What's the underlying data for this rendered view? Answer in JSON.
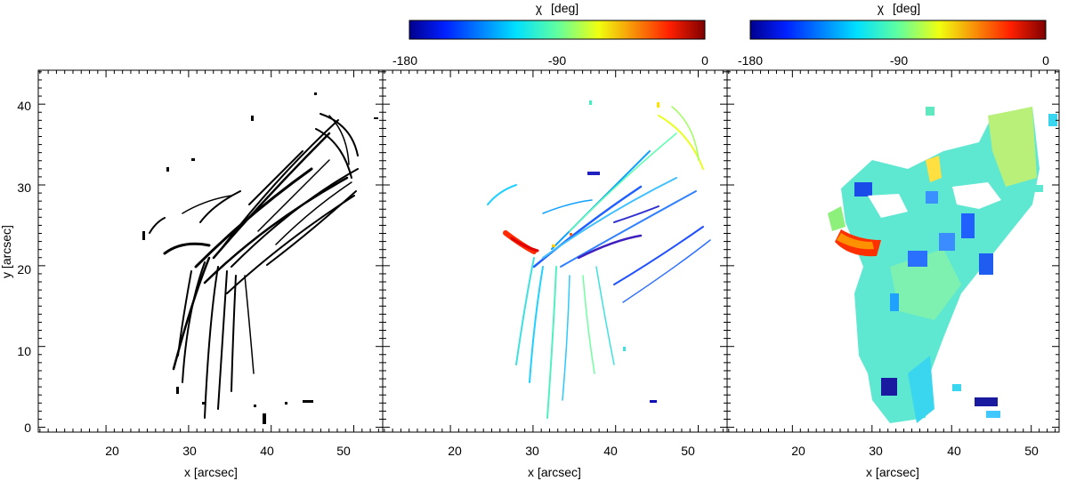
{
  "chart_data": [
    {
      "type": "heatmap",
      "panel": "fibril-mask",
      "xlabel": "x [arcsec]",
      "ylabel": "y [arcsec]",
      "xlim": [
        11.8,
        53.5
      ],
      "ylim": [
        -0.6,
        44.2
      ],
      "xticks": [
        20,
        30,
        40,
        50
      ],
      "yticks": [
        0,
        10,
        20,
        30,
        40
      ],
      "colorbar": null,
      "colors": {
        "mask": "#000000"
      }
    },
    {
      "type": "heatmap",
      "panel": "fibril-orientation",
      "xlabel": "x [arcsec]",
      "ylabel": "",
      "xlim": [
        11.8,
        53.5
      ],
      "ylim": [
        -0.6,
        44.2
      ],
      "xticks": [
        20,
        30,
        40,
        50
      ],
      "yticks": [
        0,
        10,
        20,
        30,
        40
      ],
      "colorbar": {
        "title_symbol": "χ",
        "title_unit": "[deg]",
        "range": [
          -180,
          0
        ],
        "ticks": [
          "-180",
          "-90",
          "0"
        ],
        "colormap": "jet"
      }
    },
    {
      "type": "heatmap",
      "panel": "smoothed-orientation",
      "xlabel": "x [arcsec]",
      "ylabel": "",
      "xlim": [
        11.8,
        53.5
      ],
      "ylim": [
        -0.6,
        44.2
      ],
      "xticks": [
        20,
        30,
        40,
        50
      ],
      "yticks": [
        0,
        10,
        20,
        30,
        40
      ],
      "colorbar": {
        "title_symbol": "χ",
        "title_unit": "[deg]",
        "range": [
          -180,
          0
        ],
        "ticks": [
          "-180",
          "-90",
          "0"
        ],
        "colormap": "jet"
      }
    }
  ]
}
